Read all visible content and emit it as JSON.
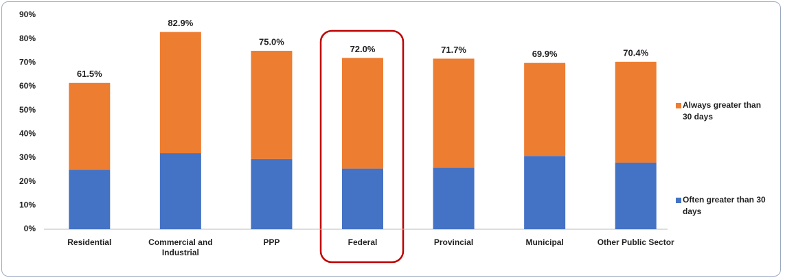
{
  "chart_data": {
    "type": "stacked_bar",
    "categories": [
      "Residential",
      "Commercial and Industrial",
      "PPP",
      "Federal",
      "Provincial",
      "Municipal",
      "Other Public Sector"
    ],
    "series": [
      {
        "name": "Often greater than 30 days",
        "color": "#4472c4",
        "values": [
          25,
          32,
          29.5,
          25.5,
          25.8,
          30.8,
          28
        ]
      },
      {
        "name": "Always greater than 30 days",
        "color": "#ed7d31",
        "values": [
          36.5,
          50.9,
          45.5,
          46.5,
          45.9,
          39.1,
          42.4
        ]
      }
    ],
    "totals": [
      61.5,
      82.9,
      75.0,
      72.0,
      71.7,
      69.9,
      70.4
    ],
    "total_labels": [
      "61.5%",
      "82.9%",
      "75.0%",
      "72.0%",
      "71.7%",
      "69.9%",
      "70.4%"
    ],
    "ylim": [
      0,
      90
    ],
    "yticks": [
      {
        "value": 0,
        "label": "0%"
      },
      {
        "value": 10,
        "label": "10%"
      },
      {
        "value": 20,
        "label": "20%"
      },
      {
        "value": 30,
        "label": "30%"
      },
      {
        "value": 40,
        "label": "40%"
      },
      {
        "value": 50,
        "label": "50%"
      },
      {
        "value": 60,
        "label": "60%"
      },
      {
        "value": 70,
        "label": "70%"
      },
      {
        "value": 80,
        "label": "80%"
      },
      {
        "value": 90,
        "label": "90%"
      }
    ],
    "grid": false,
    "legend": "right"
  }
}
